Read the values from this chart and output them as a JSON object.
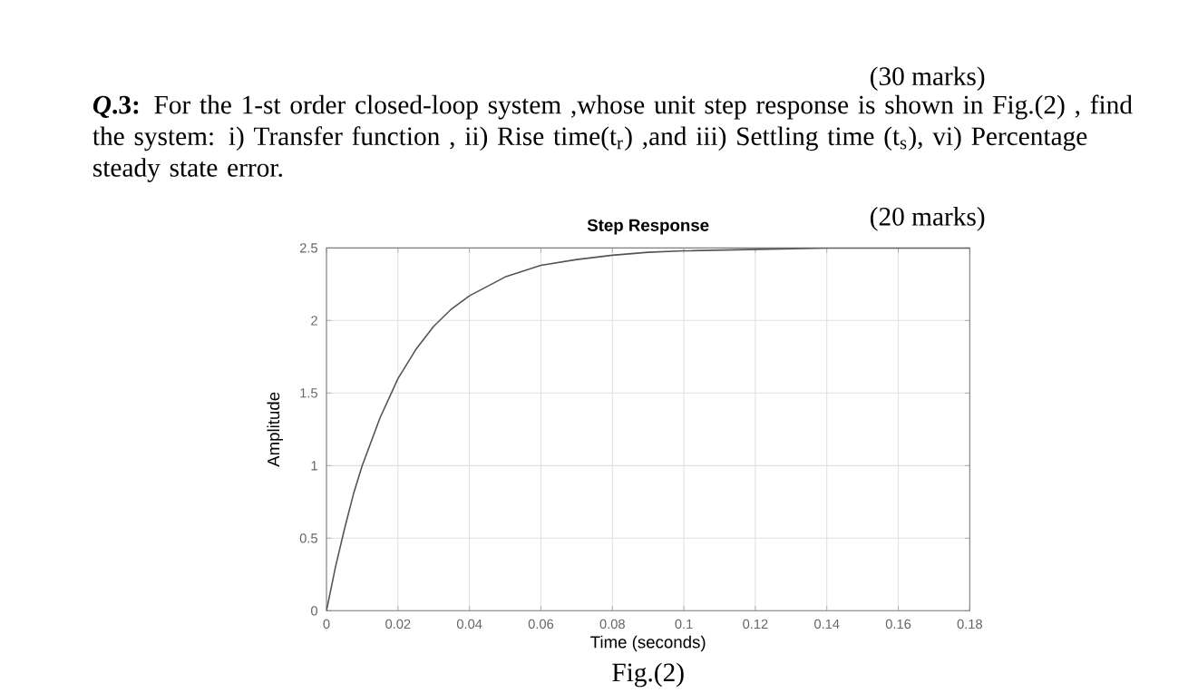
{
  "chart_data": {
    "type": "line",
    "title": "Step Response",
    "xlabel": "Time (seconds)",
    "ylabel": "Amplitude",
    "x": [
      0,
      0.0025,
      0.005,
      0.0075,
      0.01,
      0.015,
      0.02,
      0.025,
      0.03,
      0.035,
      0.04,
      0.05,
      0.06,
      0.07,
      0.08,
      0.09,
      0.1,
      0.12,
      0.14,
      0.16,
      0.18
    ],
    "series": [
      {
        "color": "#555555",
        "values": [
          0,
          0.3,
          0.56,
          0.8,
          1.0,
          1.33,
          1.6,
          1.8,
          1.96,
          2.08,
          2.17,
          2.3,
          2.38,
          2.42,
          2.45,
          2.47,
          2.48,
          2.49,
          2.5,
          2.5,
          2.5
        ]
      }
    ],
    "xlim": [
      0,
      0.18
    ],
    "ylim": [
      0,
      2.5
    ],
    "xticks": [
      0,
      0.02,
      0.04,
      0.06,
      0.08,
      0.1,
      0.12,
      0.14,
      0.16,
      0.18
    ],
    "yticks": [
      0,
      0.5,
      1,
      1.5,
      2,
      2.5
    ],
    "grid": true,
    "marker": "none",
    "line_style": "solid",
    "annotations": [
      "(30 marks)",
      "***Q*.3:** For the 1-st order closed-loop system ,whose unit step response is shown in Fig.(2) , find the system: i)  Transfer function ,  ii) Rise time(t$_{r}$) ,and iii) Settling time (t$_{s}$), vi) Percentage steady state error.",
      "(20 marks)",
      "Fig.(2)"
    ]
  }
}
